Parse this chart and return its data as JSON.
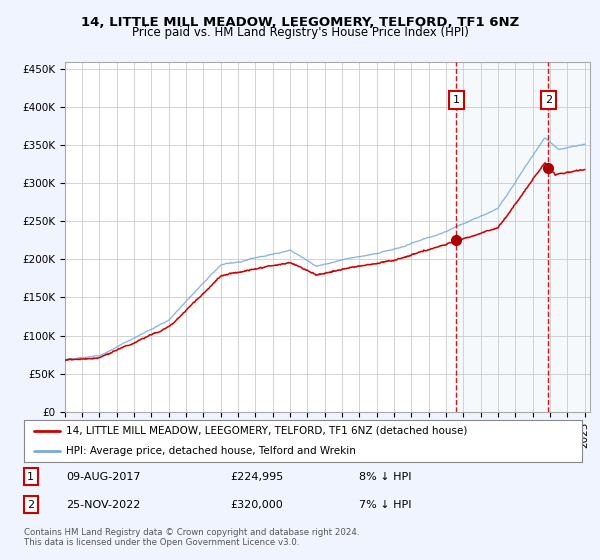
{
  "title": "14, LITTLE MILL MEADOW, LEEGOMERY, TELFORD, TF1 6NZ",
  "subtitle": "Price paid vs. HM Land Registry's House Price Index (HPI)",
  "ylabel_ticks": [
    "£0",
    "£50K",
    "£100K",
    "£150K",
    "£200K",
    "£250K",
    "£300K",
    "£350K",
    "£400K",
    "£450K"
  ],
  "ytick_values": [
    0,
    50000,
    100000,
    150000,
    200000,
    250000,
    300000,
    350000,
    400000,
    450000
  ],
  "ylim": [
    0,
    460000
  ],
  "xlim_start": 1995.0,
  "xlim_end": 2025.3,
  "background_color": "#f0f4ff",
  "plot_bg_color": "#ffffff",
  "grid_color": "#cccccc",
  "line1_color": "#cc0000",
  "line2_color": "#7aaadd",
  "vline_color": "#cc0000",
  "shade_color": "#dde8f5",
  "transaction1_x": 2017.6,
  "transaction1_y": 224995,
  "transaction2_x": 2022.9,
  "transaction2_y": 320000,
  "marker_color": "#aa0000",
  "legend_label1": "14, LITTLE MILL MEADOW, LEEGOMERY, TELFORD, TF1 6NZ (detached house)",
  "legend_label2": "HPI: Average price, detached house, Telford and Wrekin",
  "annotation1_label": "1",
  "annotation2_label": "2",
  "note1_idx": "1",
  "note1_date": "09-AUG-2017",
  "note1_price": "£224,995",
  "note1_hpi": "8% ↓ HPI",
  "note2_idx": "2",
  "note2_date": "25-NOV-2022",
  "note2_price": "£320,000",
  "note2_hpi": "7% ↓ HPI",
  "footer": "Contains HM Land Registry data © Crown copyright and database right 2024.\nThis data is licensed under the Open Government Licence v3.0.",
  "title_fontsize": 9.5,
  "subtitle_fontsize": 8.5,
  "tick_fontsize": 7.5,
  "legend_fontsize": 7.5
}
